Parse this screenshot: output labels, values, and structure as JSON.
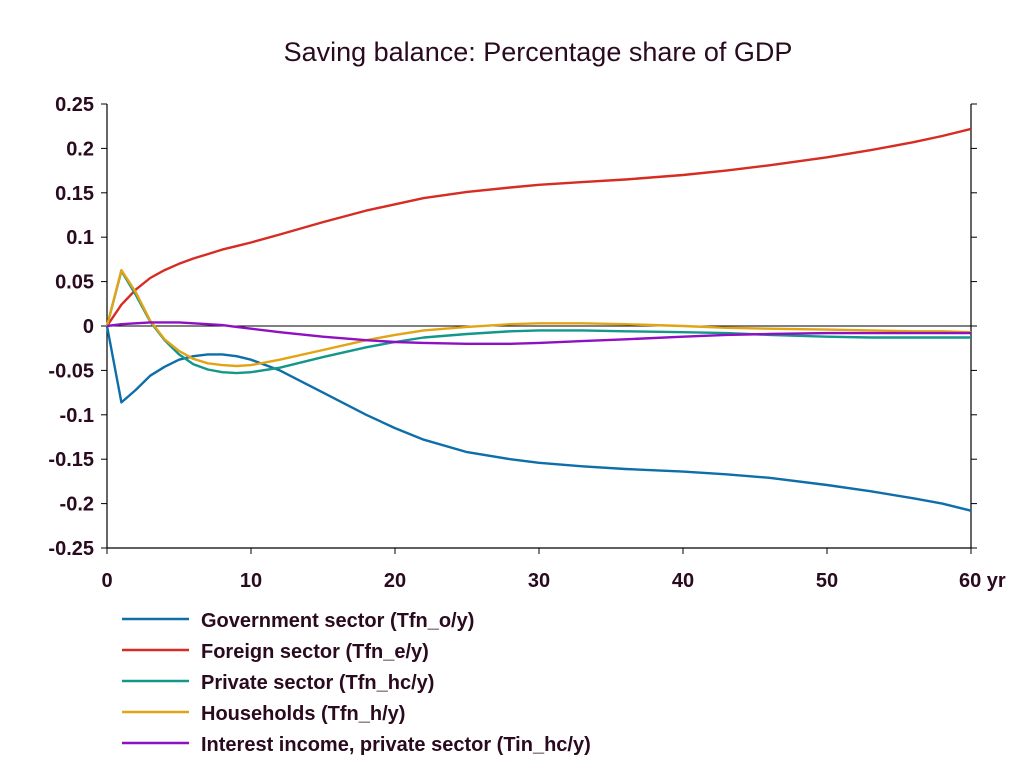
{
  "chart_data": {
    "type": "line",
    "title": "Saving balance: Percentage share of GDP",
    "xlabel": "",
    "ylabel": "",
    "x_unit_suffix": " yr",
    "xlim": [
      0,
      60
    ],
    "ylim": [
      -0.25,
      0.25
    ],
    "x_ticks": [
      0,
      10,
      20,
      30,
      40,
      50,
      60
    ],
    "y_ticks": [
      0.25,
      0.2,
      0.15,
      0.1,
      0.05,
      0,
      -0.05,
      -0.1,
      -0.15,
      -0.2,
      -0.25
    ],
    "grid": false,
    "zero_line": true,
    "legend_position": "bottom",
    "series": [
      {
        "name": "Government sector (Tfn_o/y)",
        "color": "#0e6eaa",
        "x": [
          0,
          1,
          2,
          3,
          4,
          5,
          6,
          7,
          8,
          9,
          10,
          12,
          15,
          18,
          20,
          22,
          25,
          28,
          30,
          33,
          36,
          40,
          43,
          46,
          50,
          53,
          56,
          58,
          60
        ],
        "y": [
          0,
          -0.086,
          -0.072,
          -0.056,
          -0.046,
          -0.038,
          -0.034,
          -0.032,
          -0.032,
          -0.034,
          -0.038,
          -0.05,
          -0.075,
          -0.1,
          -0.115,
          -0.128,
          -0.142,
          -0.15,
          -0.154,
          -0.158,
          -0.161,
          -0.164,
          -0.167,
          -0.171,
          -0.179,
          -0.186,
          -0.194,
          -0.2,
          -0.208
        ]
      },
      {
        "name": "Foreign sector (Tfn_e/y)",
        "color": "#d62c24",
        "x": [
          0,
          1,
          2,
          3,
          4,
          5,
          6,
          7,
          8,
          9,
          10,
          12,
          15,
          18,
          20,
          22,
          25,
          28,
          30,
          33,
          36,
          40,
          43,
          46,
          50,
          53,
          56,
          58,
          60
        ],
        "y": [
          0,
          0.024,
          0.041,
          0.054,
          0.063,
          0.07,
          0.076,
          0.081,
          0.086,
          0.09,
          0.094,
          0.103,
          0.117,
          0.13,
          0.137,
          0.144,
          0.151,
          0.156,
          0.159,
          0.162,
          0.165,
          0.17,
          0.175,
          0.181,
          0.19,
          0.198,
          0.207,
          0.214,
          0.222
        ]
      },
      {
        "name": "Private sector (Tfn_hc/y)",
        "color": "#12978a",
        "x": [
          0,
          1,
          2,
          3,
          4,
          5,
          6,
          7,
          8,
          9,
          10,
          12,
          15,
          18,
          20,
          22,
          25,
          28,
          30,
          33,
          36,
          40,
          43,
          46,
          50,
          53,
          56,
          58,
          60
        ],
        "y": [
          0,
          0.062,
          0.035,
          0.005,
          -0.016,
          -0.032,
          -0.043,
          -0.049,
          -0.052,
          -0.053,
          -0.052,
          -0.047,
          -0.035,
          -0.024,
          -0.018,
          -0.013,
          -0.009,
          -0.006,
          -0.005,
          -0.005,
          -0.006,
          -0.007,
          -0.008,
          -0.01,
          -0.012,
          -0.013,
          -0.013,
          -0.013,
          -0.013
        ]
      },
      {
        "name": "Households (Tfn_h/y)",
        "color": "#e2a415",
        "x": [
          0,
          1,
          2,
          3,
          4,
          5,
          6,
          7,
          8,
          9,
          10,
          12,
          15,
          18,
          20,
          22,
          25,
          28,
          30,
          33,
          36,
          40,
          43,
          46,
          50,
          53,
          56,
          58,
          60
        ],
        "y": [
          0,
          0.063,
          0.038,
          0.006,
          -0.015,
          -0.028,
          -0.037,
          -0.042,
          -0.044,
          -0.045,
          -0.044,
          -0.038,
          -0.027,
          -0.016,
          -0.01,
          -0.005,
          -0.001,
          0.002,
          0.003,
          0.003,
          0.002,
          0.0,
          -0.002,
          -0.003,
          -0.004,
          -0.005,
          -0.006,
          -0.006,
          -0.007
        ]
      },
      {
        "name": "Interest income, private sector (Tin_hc/y)",
        "color": "#8e10c2",
        "x": [
          0,
          1,
          2,
          3,
          4,
          5,
          6,
          7,
          8,
          9,
          10,
          12,
          15,
          18,
          20,
          22,
          25,
          28,
          30,
          33,
          36,
          40,
          43,
          46,
          50,
          53,
          56,
          58,
          60
        ],
        "y": [
          0,
          0.002,
          0.003,
          0.004,
          0.004,
          0.004,
          0.003,
          0.002,
          0.001,
          -0.001,
          -0.003,
          -0.007,
          -0.012,
          -0.016,
          -0.018,
          -0.019,
          -0.02,
          -0.02,
          -0.019,
          -0.017,
          -0.015,
          -0.012,
          -0.01,
          -0.009,
          -0.008,
          -0.008,
          -0.008,
          -0.008,
          -0.008
        ]
      }
    ]
  }
}
